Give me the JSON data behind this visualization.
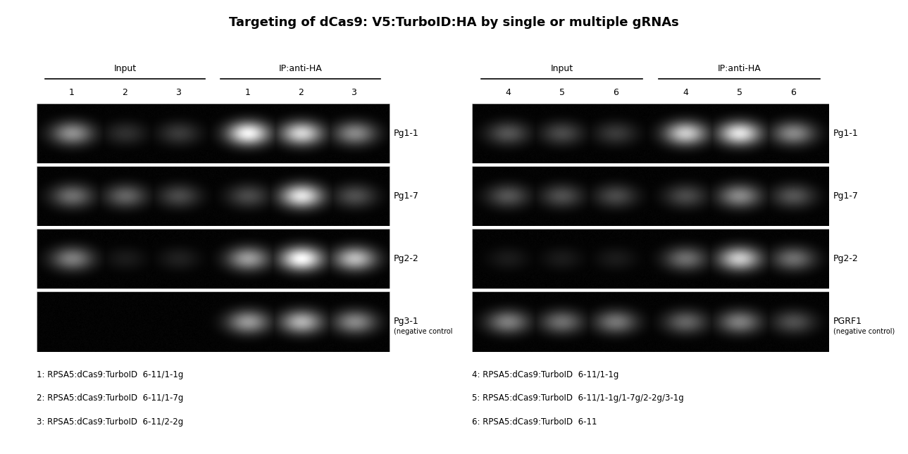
{
  "title": "Targeting of dCas9: V5:TurboID:HA by single or multiple gRNAs",
  "title_fontsize": 13,
  "title_fontweight": "bold",
  "bg_color": "#ffffff",
  "fig_width": 12.89,
  "fig_height": 6.45,
  "left_panel": {
    "header_input": "Input",
    "header_ip": "IP:anti-HA",
    "lane_labels_input": [
      "1",
      "2",
      "3"
    ],
    "lane_labels_ip": [
      "1",
      "2",
      "3"
    ],
    "row_labels": [
      "Pg1-1",
      "Pg1-7",
      "Pg2-2",
      "Pg3-1"
    ],
    "row_sublabels": [
      "",
      "",
      "",
      "(negative control"
    ],
    "bands": [
      {
        "input": [
          0.55,
          0.18,
          0.22
        ],
        "ip": [
          0.95,
          0.82,
          0.52
        ]
      },
      {
        "input": [
          0.42,
          0.38,
          0.28
        ],
        "ip": [
          0.28,
          0.88,
          0.3
        ]
      },
      {
        "input": [
          0.48,
          0.1,
          0.12
        ],
        "ip": [
          0.6,
          0.98,
          0.72
        ]
      },
      {
        "input": [
          0.0,
          0.0,
          0.0
        ],
        "ip": [
          0.58,
          0.68,
          0.52
        ]
      }
    ]
  },
  "right_panel": {
    "header_input": "Input",
    "header_ip": "IP:anti-HA",
    "lane_labels_input": [
      "4",
      "5",
      "6"
    ],
    "lane_labels_ip": [
      "4",
      "5",
      "6"
    ],
    "row_labels": [
      "Pg1-1",
      "Pg1-7",
      "Pg2-2",
      "PGRF1"
    ],
    "row_sublabels": [
      "",
      "",
      "",
      "(negative control)"
    ],
    "bands": [
      {
        "input": [
          0.32,
          0.28,
          0.22
        ],
        "ip": [
          0.78,
          0.88,
          0.52
        ]
      },
      {
        "input": [
          0.32,
          0.3,
          0.28
        ],
        "ip": [
          0.28,
          0.52,
          0.32
        ]
      },
      {
        "input": [
          0.1,
          0.1,
          0.1
        ],
        "ip": [
          0.42,
          0.78,
          0.42
        ]
      },
      {
        "input": [
          0.48,
          0.42,
          0.45
        ],
        "ip": [
          0.38,
          0.48,
          0.3
        ]
      }
    ]
  },
  "footnotes_left": [
    "1: RPSA5:dCas9:TurboID  6-11/1-1g",
    "2: RPSA5:dCas9:TurboID  6-11/1-7g",
    "3: RPSA5:dCas9:TurboID  6-11/2-2g"
  ],
  "footnotes_right": [
    "4: RPSA5:dCas9:TurboID  6-11/1-1g",
    "5: RPSA5:dCas9:TurboID  6-11/1-1g/1-7g/2-2g/3-1g",
    "6: RPSA5:dCas9:TurboID  6-11"
  ]
}
